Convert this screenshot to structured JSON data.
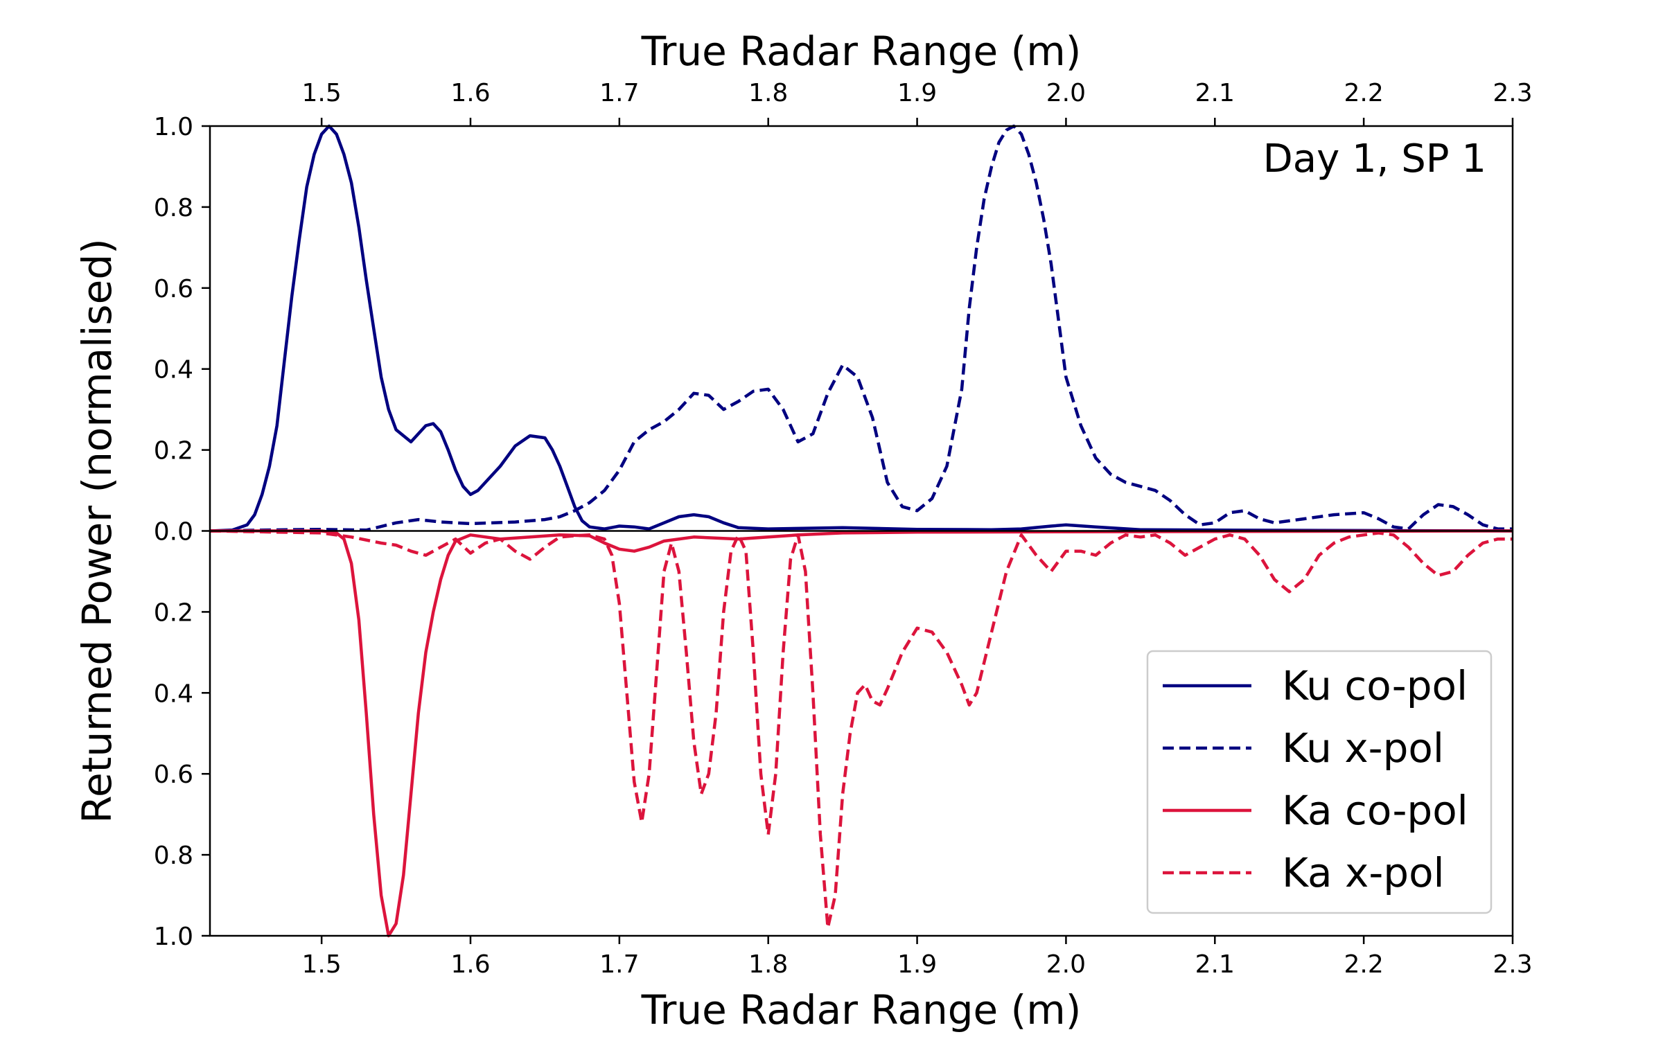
{
  "chart_data": {
    "type": "line",
    "title": "",
    "annotation": "Day 1, SP 1",
    "xlabel_top": "True Radar Range (m)",
    "xlabel_bottom": "True Radar Range (m)",
    "ylabel": "Returned Power (normalised)",
    "xlim": [
      1.425,
      2.3
    ],
    "ylim": [
      -1.0,
      1.0
    ],
    "x_ticks": [
      1.5,
      1.6,
      1.7,
      1.8,
      1.9,
      2.0,
      2.1,
      2.2,
      2.3
    ],
    "x_tick_labels": [
      "1.5",
      "1.6",
      "1.7",
      "1.8",
      "1.9",
      "2.0",
      "2.1",
      "2.2",
      "2.3"
    ],
    "y_ticks": [
      1.0,
      0.8,
      0.6,
      0.4,
      0.2,
      0.0,
      -0.2,
      -0.4,
      -0.6,
      -0.8,
      -1.0
    ],
    "y_tick_labels": [
      "1.0",
      "0.8",
      "0.6",
      "0.4",
      "0.2",
      "0.0",
      "0.2",
      "0.4",
      "0.6",
      "0.8",
      "1.0"
    ],
    "grid": false,
    "legend_position": "lower-right",
    "series": [
      {
        "name": "Ku co-pol",
        "color": "#000080",
        "style": "solid",
        "points": [
          [
            1.425,
            0.0
          ],
          [
            1.44,
            0.002
          ],
          [
            1.45,
            0.015
          ],
          [
            1.455,
            0.04
          ],
          [
            1.46,
            0.09
          ],
          [
            1.465,
            0.16
          ],
          [
            1.47,
            0.26
          ],
          [
            1.475,
            0.42
          ],
          [
            1.48,
            0.58
          ],
          [
            1.485,
            0.72
          ],
          [
            1.49,
            0.85
          ],
          [
            1.495,
            0.93
          ],
          [
            1.5,
            0.98
          ],
          [
            1.505,
            1.0
          ],
          [
            1.51,
            0.98
          ],
          [
            1.515,
            0.93
          ],
          [
            1.52,
            0.86
          ],
          [
            1.525,
            0.75
          ],
          [
            1.53,
            0.62
          ],
          [
            1.535,
            0.5
          ],
          [
            1.54,
            0.38
          ],
          [
            1.545,
            0.3
          ],
          [
            1.55,
            0.25
          ],
          [
            1.56,
            0.22
          ],
          [
            1.57,
            0.26
          ],
          [
            1.575,
            0.265
          ],
          [
            1.58,
            0.245
          ],
          [
            1.585,
            0.2
          ],
          [
            1.59,
            0.15
          ],
          [
            1.595,
            0.11
          ],
          [
            1.6,
            0.09
          ],
          [
            1.605,
            0.1
          ],
          [
            1.61,
            0.12
          ],
          [
            1.62,
            0.16
          ],
          [
            1.63,
            0.21
          ],
          [
            1.64,
            0.235
          ],
          [
            1.65,
            0.23
          ],
          [
            1.655,
            0.2
          ],
          [
            1.66,
            0.16
          ],
          [
            1.665,
            0.11
          ],
          [
            1.67,
            0.06
          ],
          [
            1.675,
            0.025
          ],
          [
            1.68,
            0.01
          ],
          [
            1.69,
            0.005
          ],
          [
            1.7,
            0.012
          ],
          [
            1.71,
            0.01
          ],
          [
            1.72,
            0.005
          ],
          [
            1.73,
            0.02
          ],
          [
            1.74,
            0.035
          ],
          [
            1.75,
            0.04
          ],
          [
            1.76,
            0.035
          ],
          [
            1.77,
            0.02
          ],
          [
            1.78,
            0.008
          ],
          [
            1.8,
            0.005
          ],
          [
            1.85,
            0.008
          ],
          [
            1.9,
            0.004
          ],
          [
            1.95,
            0.003
          ],
          [
            1.97,
            0.005
          ],
          [
            1.99,
            0.012
          ],
          [
            2.0,
            0.015
          ],
          [
            2.02,
            0.01
          ],
          [
            2.05,
            0.003
          ],
          [
            2.1,
            0.002
          ],
          [
            2.2,
            0.001
          ],
          [
            2.3,
            0.0
          ]
        ]
      },
      {
        "name": "Ku x-pol",
        "color": "#000080",
        "style": "dashed",
        "points": [
          [
            1.425,
            0.0
          ],
          [
            1.48,
            0.003
          ],
          [
            1.5,
            0.004
          ],
          [
            1.53,
            0.002
          ],
          [
            1.55,
            0.02
          ],
          [
            1.565,
            0.028
          ],
          [
            1.58,
            0.022
          ],
          [
            1.6,
            0.018
          ],
          [
            1.63,
            0.022
          ],
          [
            1.65,
            0.028
          ],
          [
            1.66,
            0.035
          ],
          [
            1.67,
            0.05
          ],
          [
            1.68,
            0.07
          ],
          [
            1.69,
            0.1
          ],
          [
            1.7,
            0.15
          ],
          [
            1.71,
            0.22
          ],
          [
            1.72,
            0.25
          ],
          [
            1.73,
            0.27
          ],
          [
            1.74,
            0.3
          ],
          [
            1.75,
            0.34
          ],
          [
            1.76,
            0.335
          ],
          [
            1.77,
            0.3
          ],
          [
            1.78,
            0.32
          ],
          [
            1.79,
            0.345
          ],
          [
            1.8,
            0.35
          ],
          [
            1.81,
            0.3
          ],
          [
            1.82,
            0.22
          ],
          [
            1.83,
            0.24
          ],
          [
            1.84,
            0.34
          ],
          [
            1.85,
            0.41
          ],
          [
            1.86,
            0.38
          ],
          [
            1.87,
            0.28
          ],
          [
            1.875,
            0.2
          ],
          [
            1.88,
            0.12
          ],
          [
            1.89,
            0.06
          ],
          [
            1.9,
            0.05
          ],
          [
            1.91,
            0.08
          ],
          [
            1.92,
            0.16
          ],
          [
            1.93,
            0.35
          ],
          [
            1.935,
            0.55
          ],
          [
            1.94,
            0.7
          ],
          [
            1.945,
            0.82
          ],
          [
            1.95,
            0.9
          ],
          [
            1.955,
            0.96
          ],
          [
            1.96,
            0.99
          ],
          [
            1.965,
            1.0
          ],
          [
            1.97,
            0.98
          ],
          [
            1.975,
            0.93
          ],
          [
            1.98,
            0.86
          ],
          [
            1.985,
            0.77
          ],
          [
            1.99,
            0.66
          ],
          [
            1.995,
            0.52
          ],
          [
            2.0,
            0.38
          ],
          [
            2.01,
            0.26
          ],
          [
            2.02,
            0.18
          ],
          [
            2.03,
            0.14
          ],
          [
            2.04,
            0.12
          ],
          [
            2.05,
            0.11
          ],
          [
            2.06,
            0.1
          ],
          [
            2.07,
            0.075
          ],
          [
            2.08,
            0.04
          ],
          [
            2.09,
            0.015
          ],
          [
            2.1,
            0.02
          ],
          [
            2.11,
            0.045
          ],
          [
            2.12,
            0.05
          ],
          [
            2.13,
            0.03
          ],
          [
            2.14,
            0.02
          ],
          [
            2.16,
            0.03
          ],
          [
            2.18,
            0.04
          ],
          [
            2.2,
            0.045
          ],
          [
            2.21,
            0.03
          ],
          [
            2.22,
            0.01
          ],
          [
            2.23,
            0.005
          ],
          [
            2.24,
            0.04
          ],
          [
            2.25,
            0.065
          ],
          [
            2.26,
            0.06
          ],
          [
            2.27,
            0.04
          ],
          [
            2.28,
            0.015
          ],
          [
            2.29,
            0.005
          ],
          [
            2.3,
            0.005
          ]
        ]
      },
      {
        "name": "Ka co-pol",
        "color": "#dc143c",
        "style": "solid",
        "points": [
          [
            1.425,
            0.0
          ],
          [
            1.5,
            0.0
          ],
          [
            1.51,
            -0.005
          ],
          [
            1.515,
            -0.02
          ],
          [
            1.52,
            -0.08
          ],
          [
            1.525,
            -0.22
          ],
          [
            1.53,
            -0.45
          ],
          [
            1.535,
            -0.7
          ],
          [
            1.54,
            -0.9
          ],
          [
            1.545,
            -1.0
          ],
          [
            1.55,
            -0.97
          ],
          [
            1.555,
            -0.85
          ],
          [
            1.56,
            -0.65
          ],
          [
            1.565,
            -0.45
          ],
          [
            1.57,
            -0.3
          ],
          [
            1.575,
            -0.2
          ],
          [
            1.58,
            -0.12
          ],
          [
            1.585,
            -0.06
          ],
          [
            1.59,
            -0.025
          ],
          [
            1.6,
            -0.01
          ],
          [
            1.62,
            -0.02
          ],
          [
            1.64,
            -0.015
          ],
          [
            1.66,
            -0.01
          ],
          [
            1.68,
            -0.012
          ],
          [
            1.69,
            -0.03
          ],
          [
            1.7,
            -0.045
          ],
          [
            1.71,
            -0.05
          ],
          [
            1.72,
            -0.04
          ],
          [
            1.73,
            -0.025
          ],
          [
            1.75,
            -0.015
          ],
          [
            1.78,
            -0.02
          ],
          [
            1.8,
            -0.015
          ],
          [
            1.82,
            -0.01
          ],
          [
            1.85,
            -0.005
          ],
          [
            1.9,
            -0.003
          ],
          [
            2.0,
            -0.002
          ],
          [
            2.3,
            0.0
          ]
        ]
      },
      {
        "name": "Ka x-pol",
        "color": "#dc143c",
        "style": "dashed",
        "points": [
          [
            1.425,
            0.0
          ],
          [
            1.5,
            -0.005
          ],
          [
            1.52,
            -0.015
          ],
          [
            1.54,
            -0.03
          ],
          [
            1.55,
            -0.035
          ],
          [
            1.56,
            -0.05
          ],
          [
            1.57,
            -0.06
          ],
          [
            1.58,
            -0.04
          ],
          [
            1.59,
            -0.02
          ],
          [
            1.6,
            -0.055
          ],
          [
            1.61,
            -0.03
          ],
          [
            1.62,
            -0.02
          ],
          [
            1.63,
            -0.05
          ],
          [
            1.64,
            -0.07
          ],
          [
            1.65,
            -0.04
          ],
          [
            1.66,
            -0.015
          ],
          [
            1.67,
            -0.012
          ],
          [
            1.68,
            -0.01
          ],
          [
            1.69,
            -0.02
          ],
          [
            1.695,
            -0.06
          ],
          [
            1.7,
            -0.18
          ],
          [
            1.705,
            -0.4
          ],
          [
            1.71,
            -0.62
          ],
          [
            1.715,
            -0.72
          ],
          [
            1.72,
            -0.6
          ],
          [
            1.725,
            -0.35
          ],
          [
            1.73,
            -0.1
          ],
          [
            1.735,
            -0.03
          ],
          [
            1.74,
            -0.1
          ],
          [
            1.745,
            -0.3
          ],
          [
            1.75,
            -0.52
          ],
          [
            1.755,
            -0.65
          ],
          [
            1.76,
            -0.6
          ],
          [
            1.765,
            -0.45
          ],
          [
            1.77,
            -0.2
          ],
          [
            1.775,
            -0.05
          ],
          [
            1.78,
            -0.01
          ],
          [
            1.785,
            -0.05
          ],
          [
            1.79,
            -0.3
          ],
          [
            1.795,
            -0.6
          ],
          [
            1.8,
            -0.75
          ],
          [
            1.805,
            -0.6
          ],
          [
            1.81,
            -0.3
          ],
          [
            1.815,
            -0.07
          ],
          [
            1.82,
            -0.01
          ],
          [
            1.825,
            -0.1
          ],
          [
            1.83,
            -0.4
          ],
          [
            1.835,
            -0.75
          ],
          [
            1.84,
            -0.98
          ],
          [
            1.845,
            -0.9
          ],
          [
            1.85,
            -0.65
          ],
          [
            1.855,
            -0.5
          ],
          [
            1.86,
            -0.4
          ],
          [
            1.865,
            -0.38
          ],
          [
            1.87,
            -0.42
          ],
          [
            1.875,
            -0.43
          ],
          [
            1.88,
            -0.39
          ],
          [
            1.89,
            -0.3
          ],
          [
            1.9,
            -0.24
          ],
          [
            1.91,
            -0.25
          ],
          [
            1.92,
            -0.3
          ],
          [
            1.93,
            -0.38
          ],
          [
            1.935,
            -0.43
          ],
          [
            1.94,
            -0.4
          ],
          [
            1.95,
            -0.25
          ],
          [
            1.96,
            -0.1
          ],
          [
            1.97,
            -0.01
          ],
          [
            1.98,
            -0.06
          ],
          [
            1.99,
            -0.1
          ],
          [
            2.0,
            -0.05
          ],
          [
            2.01,
            -0.05
          ],
          [
            2.02,
            -0.06
          ],
          [
            2.03,
            -0.03
          ],
          [
            2.04,
            -0.01
          ],
          [
            2.05,
            -0.015
          ],
          [
            2.06,
            -0.01
          ],
          [
            2.07,
            -0.03
          ],
          [
            2.08,
            -0.06
          ],
          [
            2.09,
            -0.04
          ],
          [
            2.1,
            -0.02
          ],
          [
            2.11,
            -0.01
          ],
          [
            2.12,
            -0.02
          ],
          [
            2.13,
            -0.06
          ],
          [
            2.14,
            -0.12
          ],
          [
            2.15,
            -0.15
          ],
          [
            2.16,
            -0.12
          ],
          [
            2.17,
            -0.06
          ],
          [
            2.18,
            -0.03
          ],
          [
            2.19,
            -0.015
          ],
          [
            2.2,
            -0.01
          ],
          [
            2.21,
            -0.005
          ],
          [
            2.22,
            -0.01
          ],
          [
            2.23,
            -0.04
          ],
          [
            2.24,
            -0.08
          ],
          [
            2.25,
            -0.11
          ],
          [
            2.26,
            -0.1
          ],
          [
            2.27,
            -0.06
          ],
          [
            2.28,
            -0.03
          ],
          [
            2.29,
            -0.02
          ],
          [
            2.3,
            -0.02
          ]
        ]
      }
    ]
  }
}
